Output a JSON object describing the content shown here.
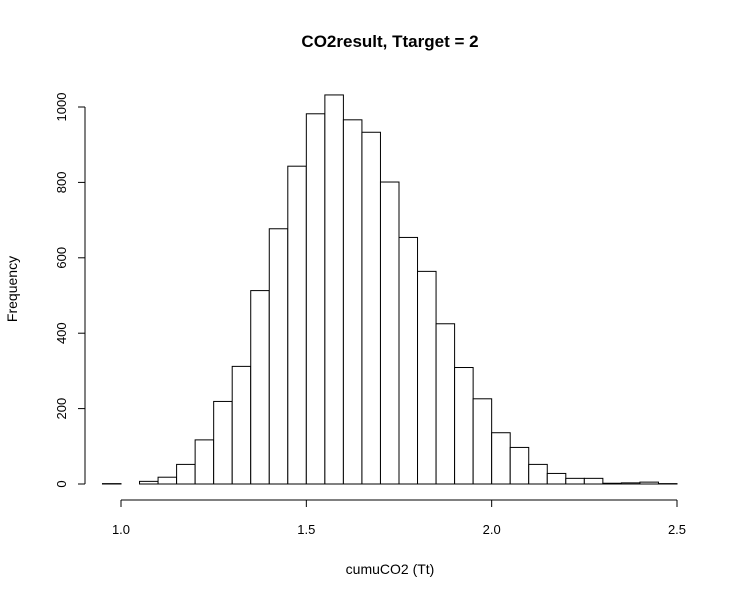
{
  "chart_data": {
    "type": "bar",
    "subtype": "histogram",
    "title": "CO2result, Ttarget =  2",
    "xlabel": "cumuCO2 (Tt)",
    "ylabel": "Frequency",
    "bin_width": 0.05,
    "bins": [
      {
        "x0": 0.95,
        "x1": 1.0,
        "count": 1
      },
      {
        "x0": 1.0,
        "x1": 1.05,
        "count": 0
      },
      {
        "x0": 1.05,
        "x1": 1.1,
        "count": 7
      },
      {
        "x0": 1.1,
        "x1": 1.15,
        "count": 18
      },
      {
        "x0": 1.15,
        "x1": 1.2,
        "count": 52
      },
      {
        "x0": 1.2,
        "x1": 1.25,
        "count": 117
      },
      {
        "x0": 1.25,
        "x1": 1.3,
        "count": 219
      },
      {
        "x0": 1.3,
        "x1": 1.35,
        "count": 312
      },
      {
        "x0": 1.35,
        "x1": 1.4,
        "count": 513
      },
      {
        "x0": 1.4,
        "x1": 1.45,
        "count": 677
      },
      {
        "x0": 1.45,
        "x1": 1.5,
        "count": 843
      },
      {
        "x0": 1.5,
        "x1": 1.55,
        "count": 982
      },
      {
        "x0": 1.55,
        "x1": 1.6,
        "count": 1032
      },
      {
        "x0": 1.6,
        "x1": 1.65,
        "count": 966
      },
      {
        "x0": 1.65,
        "x1": 1.7,
        "count": 933
      },
      {
        "x0": 1.7,
        "x1": 1.75,
        "count": 801
      },
      {
        "x0": 1.75,
        "x1": 1.8,
        "count": 654
      },
      {
        "x0": 1.8,
        "x1": 1.85,
        "count": 564
      },
      {
        "x0": 1.85,
        "x1": 1.9,
        "count": 425
      },
      {
        "x0": 1.9,
        "x1": 1.95,
        "count": 309
      },
      {
        "x0": 1.95,
        "x1": 2.0,
        "count": 226
      },
      {
        "x0": 2.0,
        "x1": 2.05,
        "count": 136
      },
      {
        "x0": 2.05,
        "x1": 2.1,
        "count": 97
      },
      {
        "x0": 2.1,
        "x1": 2.15,
        "count": 52
      },
      {
        "x0": 2.15,
        "x1": 2.2,
        "count": 28
      },
      {
        "x0": 2.2,
        "x1": 2.25,
        "count": 15
      },
      {
        "x0": 2.25,
        "x1": 2.3,
        "count": 15
      },
      {
        "x0": 2.3,
        "x1": 2.35,
        "count": 2
      },
      {
        "x0": 2.35,
        "x1": 2.4,
        "count": 3
      },
      {
        "x0": 2.4,
        "x1": 2.45,
        "count": 5
      },
      {
        "x0": 2.45,
        "x1": 2.5,
        "count": 1
      }
    ],
    "xlim": [
      0.95,
      2.5
    ],
    "ylim": [
      0,
      1032
    ],
    "xticks": [
      1.0,
      1.5,
      2.0,
      2.5
    ],
    "xtick_labels": [
      "1.0",
      "1.5",
      "2.0",
      "2.5"
    ],
    "yticks": [
      0,
      200,
      400,
      600,
      800,
      1000
    ],
    "ytick_labels": [
      "0",
      "200",
      "400",
      "600",
      "800",
      "1000"
    ],
    "grid": false,
    "bar_fill": "#ffffff",
    "bar_stroke": "#000000"
  }
}
